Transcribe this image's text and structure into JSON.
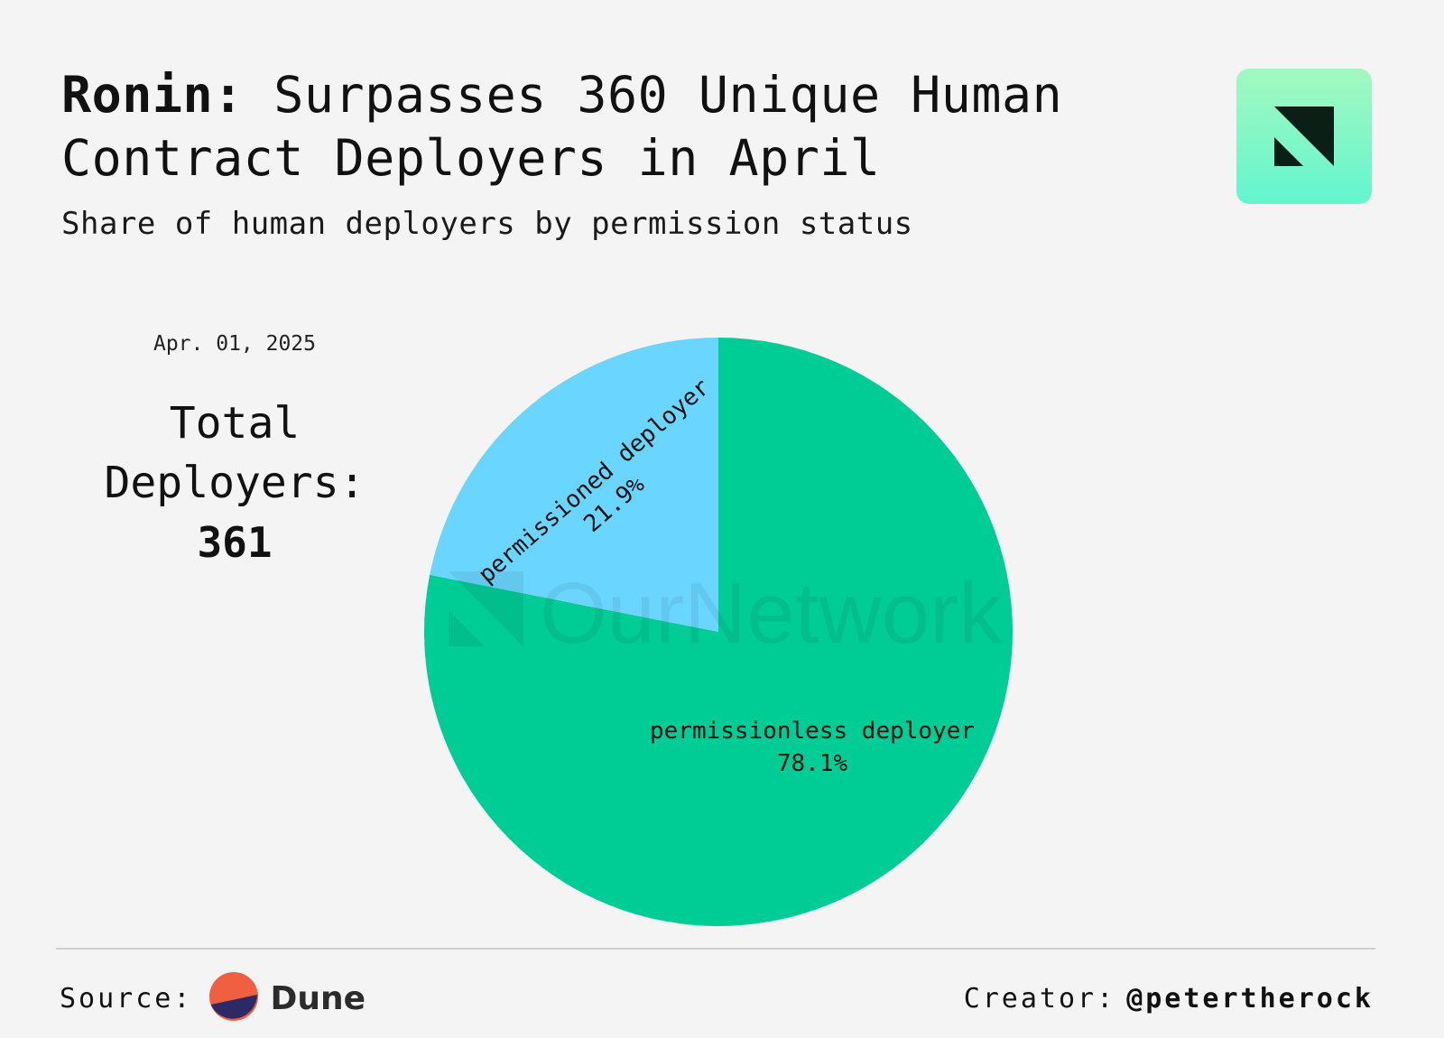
{
  "header": {
    "title_lead": "Ronin:",
    "title_rest": " Surpasses 360 Unique Human Contract Deployers in April",
    "subtitle": "Share of human deployers by permission status"
  },
  "brand": {
    "logo_icon": "ournetwork-logo-icon",
    "watermark": "OurNetwork"
  },
  "side_panel": {
    "date": "Apr. 01, 2025",
    "total_label": "Total Deployers:",
    "total_value": "361"
  },
  "chart_data": {
    "type": "pie",
    "slices": [
      {
        "label": "permissionless deployer",
        "value": 78.1,
        "display": "78.1%",
        "color": "#00cc96"
      },
      {
        "label": "permissioned deployer",
        "value": 21.9,
        "display": "21.9%",
        "color": "#6ad6ff"
      }
    ],
    "title": "",
    "legend": "none"
  },
  "footer": {
    "source_label": "Source:",
    "source_name": "Dune",
    "source_icon": "dune-logo-icon",
    "creator_label": "Creator:",
    "creator_handle": "@petertherock"
  }
}
